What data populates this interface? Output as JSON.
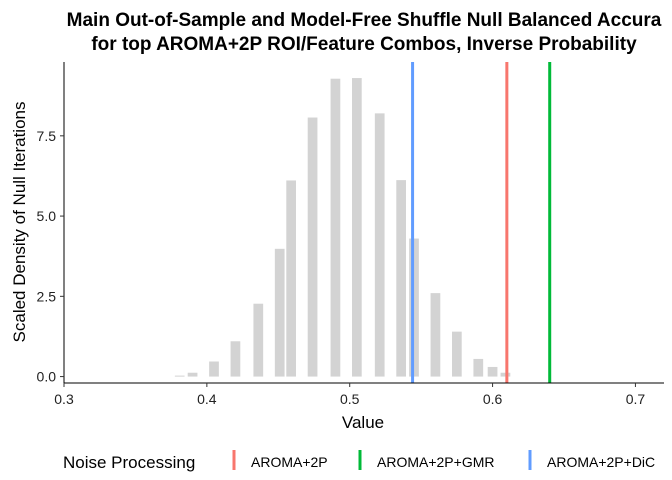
{
  "chart_data": {
    "type": "bar",
    "title_lines": [
      "Main Out-of-Sample and Model-Free Shuffle Null Balanced Accura",
      "for top AROMA+2P ROI/Feature Combos, Inverse Probability"
    ],
    "xlabel": "Value",
    "ylabel": "Scaled Density of Null Iterations",
    "xlim": [
      0.3,
      0.72
    ],
    "ylim": [
      -0.2,
      9.8
    ],
    "x_ticks": [
      0.3,
      0.4,
      0.5,
      0.6,
      0.7
    ],
    "x_tick_labels": [
      "0.3",
      "0.4",
      "0.5",
      "0.6",
      "0.7"
    ],
    "y_ticks": [
      0.0,
      2.5,
      5.0,
      7.5
    ],
    "y_tick_labels": [
      "0.0",
      "2.5",
      "5.0",
      "7.5"
    ],
    "grid": false,
    "bar_color": "#d3d3d3",
    "bar_width": 0.0068,
    "histogram": {
      "x": [
        0.381,
        0.39,
        0.405,
        0.42,
        0.436,
        0.451,
        0.459,
        0.474,
        0.49,
        0.505,
        0.521,
        0.536,
        0.545,
        0.56,
        0.575,
        0.59,
        0.6,
        0.609
      ],
      "y": [
        0.03,
        0.12,
        0.47,
        1.1,
        2.27,
        3.98,
        6.11,
        8.07,
        9.28,
        9.3,
        8.2,
        6.12,
        4.3,
        2.6,
        1.4,
        0.55,
        0.3,
        0.12
      ]
    },
    "vlines": [
      {
        "name": "AROMA+2P",
        "x": 0.61,
        "color": "#f8766d"
      },
      {
        "name": "AROMA+2P+GMR",
        "x": 0.64,
        "color": "#00ba38"
      },
      {
        "name": "AROMA+2P+DiC",
        "x": 0.544,
        "color": "#619cff"
      }
    ],
    "legend": {
      "title": "Noise Processing",
      "position": "bottom",
      "entries": [
        "AROMA+2P",
        "AROMA+2P+GMR",
        "AROMA+2P+DiC"
      ]
    }
  }
}
